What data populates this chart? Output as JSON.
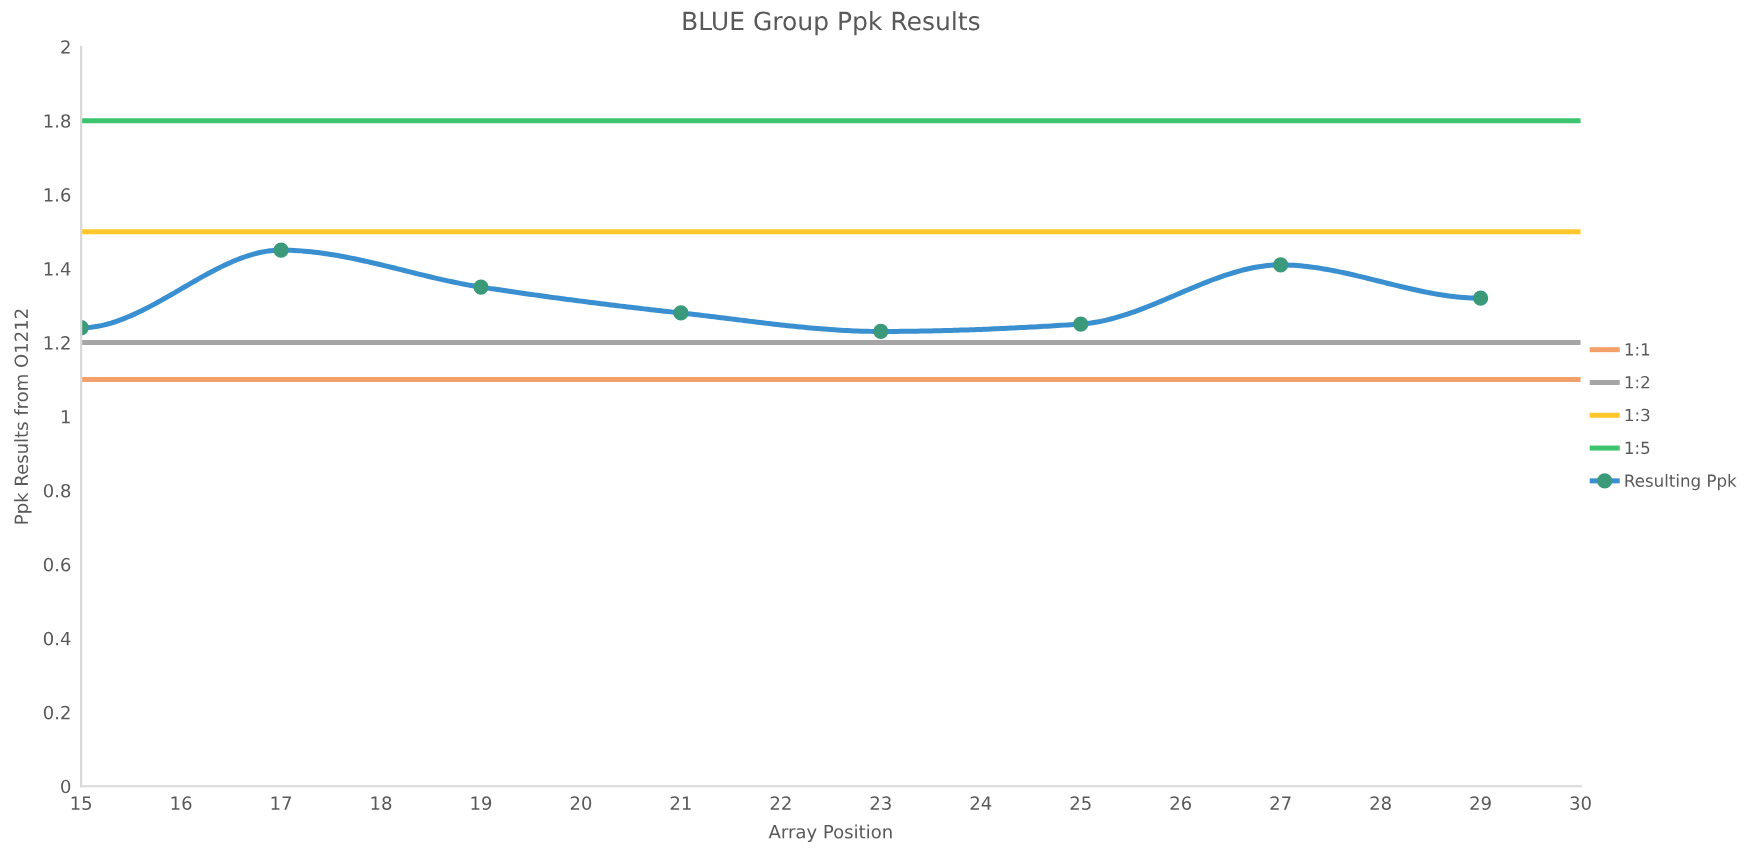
{
  "chart_data": {
    "type": "line",
    "title": "BLUE Group Ppk Results",
    "xlabel": "Array Position",
    "ylabel": "Ppk Results from O1212",
    "series": [
      {
        "name": "1:1",
        "color": "#f4a06a",
        "x": [
          15,
          30
        ],
        "values": [
          1.1,
          1.1
        ],
        "marker": "none"
      },
      {
        "name": "1:2",
        "color": "#a5a5a5",
        "x": [
          15,
          30
        ],
        "values": [
          1.2,
          1.2
        ],
        "marker": "none"
      },
      {
        "name": "1:3",
        "color": "#ffc72c",
        "x": [
          15,
          30
        ],
        "values": [
          1.5,
          1.5
        ],
        "marker": "none"
      },
      {
        "name": "1:5",
        "color": "#3cc46e",
        "x": [
          15,
          30
        ],
        "values": [
          1.8,
          1.8
        ],
        "marker": "none"
      },
      {
        "name": "Resulting Ppk",
        "color": "#3a8fd0",
        "x": [
          15,
          17,
          19,
          21,
          23,
          25,
          27,
          29
        ],
        "values": [
          1.24,
          1.45,
          1.35,
          1.28,
          1.23,
          1.25,
          1.41,
          1.32
        ],
        "marker": "circle"
      }
    ],
    "xlim": [
      15,
      30
    ],
    "xticks": [
      15,
      16,
      17,
      18,
      19,
      20,
      21,
      22,
      23,
      24,
      25,
      26,
      27,
      28,
      29,
      30
    ],
    "ylim": [
      0,
      2
    ],
    "yticks": [
      0,
      0.2,
      0.4,
      0.6,
      0.8,
      1,
      1.2,
      1.4,
      1.6,
      1.8,
      2
    ],
    "legend": "right",
    "grid": false,
    "line_style": "solid"
  }
}
